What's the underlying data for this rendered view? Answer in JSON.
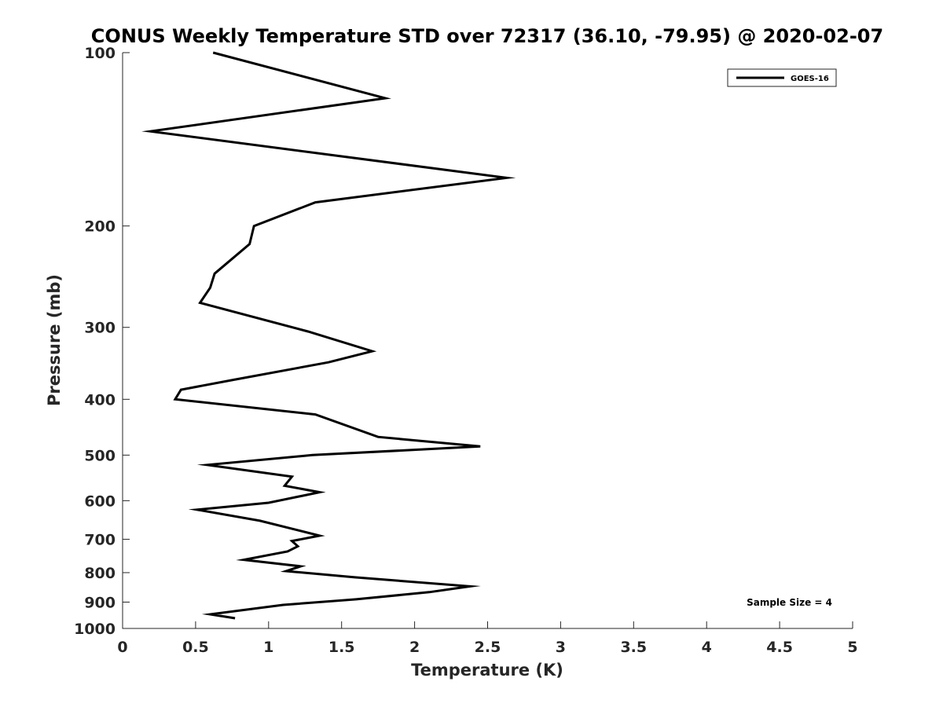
{
  "chart_data": {
    "type": "line",
    "title": "CONUS Weekly Temperature STD over 72317 (36.10, -79.95) @ 2020-02-07",
    "xlabel": "Temperature (K)",
    "ylabel": "Pressure (mb)",
    "xlim": [
      0,
      5
    ],
    "ylim": [
      100,
      1000
    ],
    "y_scale": "log",
    "y_reversed": true,
    "x_ticks": [
      0,
      0.5,
      1,
      1.5,
      2,
      2.5,
      3,
      3.5,
      4,
      4.5,
      5
    ],
    "x_tick_labels": [
      "0",
      "0.5",
      "1",
      "1.5",
      "2",
      "2.5",
      "3",
      "3.5",
      "4",
      "4.5",
      "5"
    ],
    "y_ticks": [
      100,
      200,
      300,
      400,
      500,
      600,
      700,
      800,
      900,
      1000
    ],
    "y_tick_labels": [
      "100",
      "200",
      "300",
      "400",
      "500",
      "600",
      "700",
      "800",
      "900",
      "1000"
    ],
    "grid": false,
    "legend_position": "top-right",
    "series": [
      {
        "name": "GOES-16",
        "color": "#000000",
        "x": [
          0.62,
          1.8,
          0.19,
          2.63,
          1.32,
          0.9,
          0.87,
          0.63,
          0.6,
          0.53,
          1.27,
          1.71,
          1.41,
          0.76,
          0.4,
          0.36,
          1.32,
          1.75,
          2.45,
          1.3,
          0.58,
          1.16,
          1.11,
          1.35,
          1.0,
          0.51,
          0.94,
          1.2,
          1.35,
          1.16,
          1.2,
          1.13,
          0.83,
          1.22,
          1.12,
          1.59,
          2.38,
          2.1,
          1.6,
          1.1,
          0.6,
          0.77
        ],
        "y": [
          100,
          120,
          137,
          165,
          182,
          200,
          215,
          242,
          256,
          272,
          305,
          330,
          345,
          370,
          385,
          400,
          425,
          465,
          483,
          500,
          520,
          545,
          565,
          580,
          605,
          622,
          650,
          675,
          690,
          705,
          720,
          735,
          760,
          780,
          795,
          815,
          845,
          865,
          890,
          910,
          945,
          960
        ]
      }
    ],
    "annotations": [
      "Sample Size = 4"
    ]
  }
}
